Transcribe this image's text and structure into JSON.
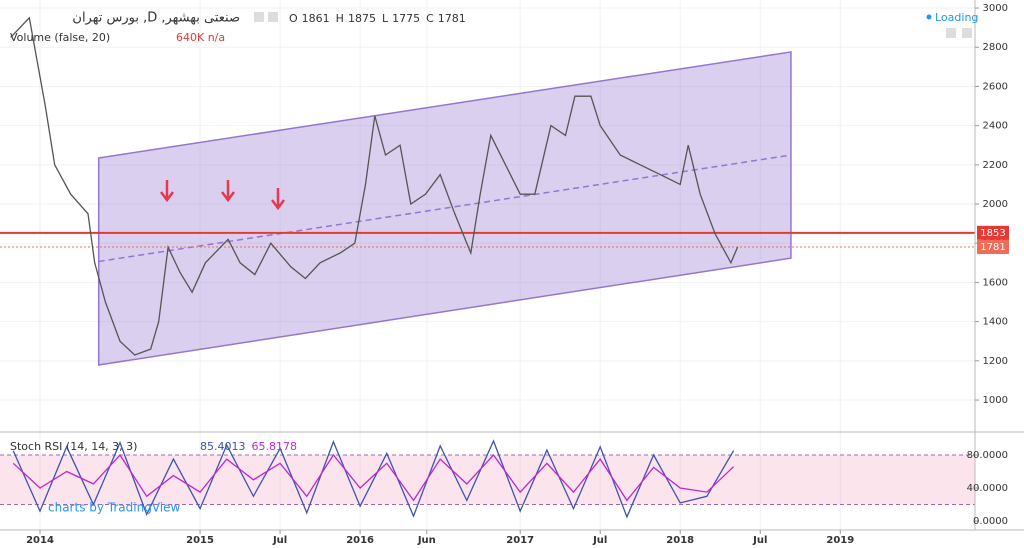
{
  "chart_data": [
    {
      "type": "line",
      "title": "صنعتی بهشهر, D, بورس تهران",
      "ohlc": {
        "labels": [
          "O",
          "H",
          "L",
          "C"
        ],
        "values": [
          1861,
          1875,
          1775,
          1781
        ]
      },
      "volume_title": "Volume (false, 20)",
      "volume_readout": "640K n/a",
      "status": "Loading",
      "watermark": "charts by TradingView",
      "x": [
        -2.2,
        -0.8,
        0.4,
        1.1,
        2.3,
        3.6,
        4.1,
        4.9,
        6,
        7.1,
        8.3,
        8.9,
        9.6,
        10.5,
        11.4,
        12.4,
        14.1,
        15,
        16.1,
        17.3,
        18.8,
        19.9,
        21,
        22.5,
        23.6,
        24.4,
        25.1,
        25.9,
        27,
        27.8,
        28.9,
        30,
        31.1,
        32.3,
        33,
        33.8,
        34.9,
        36,
        37.1,
        38.3,
        39.4,
        40.1,
        41.3,
        42,
        43.5,
        45,
        46.5,
        48,
        48.6,
        49.5,
        50.6,
        51.8,
        52.3
      ],
      "values": [
        2850,
        2950,
        2500,
        2200,
        2050,
        1950,
        1700,
        1500,
        1300,
        1230,
        1260,
        1400,
        1780,
        1650,
        1550,
        1700,
        1820,
        1700,
        1640,
        1800,
        1680,
        1620,
        1700,
        1750,
        1800,
        2100,
        2450,
        2250,
        2300,
        2000,
        2050,
        2150,
        1950,
        1750,
        2050,
        2350,
        2200,
        2050,
        2050,
        2400,
        2350,
        2550,
        2550,
        2400,
        2250,
        2200,
        2150,
        2100,
        2300,
        2050,
        1850,
        1700,
        1781
      ],
      "color": "#555555",
      "xlim": [
        -3,
        70.1
      ],
      "xticks": [
        {
          "value": 0,
          "label": "2014"
        },
        {
          "value": 12,
          "label": "2015"
        },
        {
          "value": 18,
          "label": "Jul"
        },
        {
          "value": 24,
          "label": "2016"
        },
        {
          "value": 29,
          "label": "Jun"
        },
        {
          "value": 36,
          "label": "2017"
        },
        {
          "value": 42,
          "label": "Jul"
        },
        {
          "value": 48,
          "label": "2018"
        },
        {
          "value": 54,
          "label": "Jul"
        },
        {
          "value": 60,
          "label": "2019"
        }
      ],
      "ylim": [
        837,
        3041
      ],
      "yticks": [
        1000,
        1200,
        1400,
        1600,
        1800,
        2000,
        2200,
        2400,
        2600,
        2800,
        3000
      ],
      "grid": true,
      "hlines": [
        {
          "value": 1853,
          "color": "#e53935"
        },
        {
          "value": 1781,
          "color": "#ef6c57"
        }
      ],
      "channel": {
        "x": [
          4.4,
          56.3
        ],
        "upper": [
          2235,
          2776
        ],
        "lower": [
          1179,
          1724
        ],
        "color": "#9575cd"
      }
    },
    {
      "type": "line",
      "title": "Stoch RSI (14, 14, 3, 3)",
      "readout": [
        85.4013,
        65.8178
      ],
      "x": [
        -2,
        0,
        2,
        4,
        6,
        8,
        10,
        12,
        14,
        16,
        18,
        20,
        22,
        24,
        26,
        28,
        30,
        32,
        34,
        36,
        38,
        40,
        42,
        44,
        46,
        48,
        50,
        52
      ],
      "series": [
        {
          "color": "#3f51b5",
          "values": [
            85,
            12,
            90,
            20,
            95,
            8,
            75,
            15,
            92,
            30,
            88,
            10,
            96,
            18,
            82,
            6,
            91,
            25,
            97,
            12,
            86,
            15,
            90,
            5,
            80,
            22,
            30,
            85.4013
          ]
        },
        {
          "color": "#c026d3",
          "values": [
            70,
            40,
            60,
            45,
            80,
            30,
            55,
            35,
            75,
            50,
            70,
            30,
            80,
            40,
            70,
            25,
            75,
            45,
            80,
            35,
            70,
            35,
            75,
            25,
            65,
            40,
            35,
            65.8178
          ]
        }
      ],
      "ylim": [
        -10.9,
        107.9
      ],
      "yticks": [
        {
          "value": 80,
          "label": "80.0000"
        },
        {
          "value": 40,
          "label": "40.0000"
        },
        {
          "value": 0,
          "label": "0.0000"
        }
      ],
      "band": [
        20,
        80
      ]
    }
  ]
}
